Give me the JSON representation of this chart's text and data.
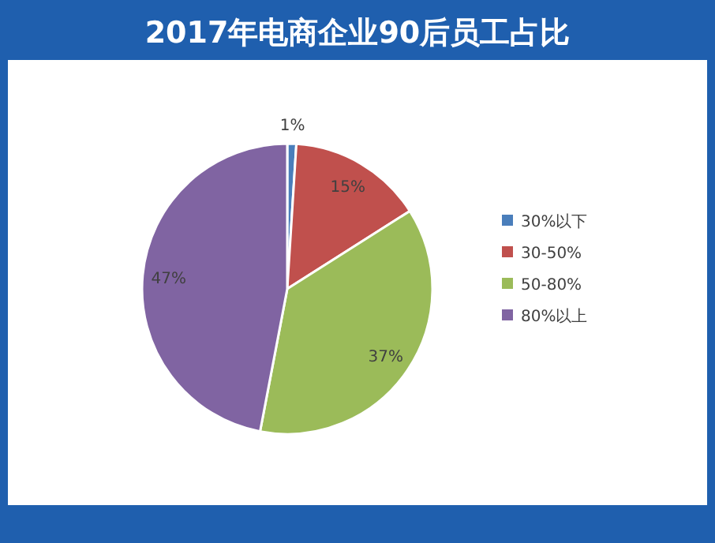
{
  "chart_data": {
    "type": "pie",
    "title": "2017年电商企业90后员工占比",
    "categories": [
      "30%以下",
      "30-50%",
      "50-80%",
      "80%以上"
    ],
    "values": [
      1,
      15,
      37,
      47
    ],
    "colors": [
      "#4a7ebb",
      "#c0504d",
      "#9bbb59",
      "#8064a2"
    ],
    "value_labels": [
      "1%",
      "15%",
      "37%",
      "47%"
    ],
    "legend": "right"
  }
}
